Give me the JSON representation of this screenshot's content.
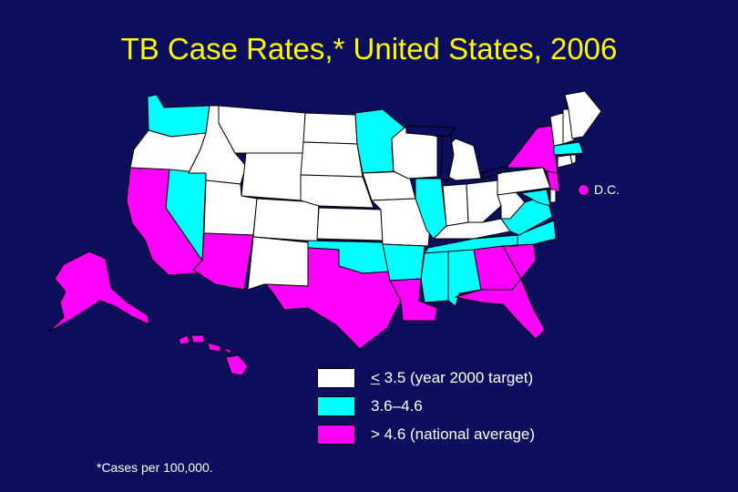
{
  "title": "TB Case Rates,* United States, 2006",
  "footnote": "*Cases per 100,000.",
  "colors": {
    "background": "#0c0d5c",
    "title": "#ffff00",
    "low": "#ffffff",
    "mid": "#00ffff",
    "high": "#ff00ff",
    "lakes": "#0c0d5c"
  },
  "legend": [
    {
      "category": "low",
      "lead": "<",
      "label": " 3.5 (year 2000 target)"
    },
    {
      "category": "mid",
      "lead": "",
      "label": "3.6–4.6"
    },
    {
      "category": "high",
      "lead": "",
      "label": "> 4.6 (national average)"
    }
  ],
  "dc": {
    "label": "D.C.",
    "category": "high"
  },
  "states": [
    {
      "name": "WA",
      "category": "mid"
    },
    {
      "name": "OR",
      "category": "low"
    },
    {
      "name": "CA",
      "category": "high"
    },
    {
      "name": "NV",
      "category": "mid"
    },
    {
      "name": "ID",
      "category": "low"
    },
    {
      "name": "MT",
      "category": "low"
    },
    {
      "name": "WY",
      "category": "low"
    },
    {
      "name": "UT",
      "category": "low"
    },
    {
      "name": "AZ",
      "category": "high"
    },
    {
      "name": "CO",
      "category": "low"
    },
    {
      "name": "NM",
      "category": "low"
    },
    {
      "name": "ND",
      "category": "low"
    },
    {
      "name": "SD",
      "category": "low"
    },
    {
      "name": "NE",
      "category": "low"
    },
    {
      "name": "KS",
      "category": "low"
    },
    {
      "name": "OK",
      "category": "mid"
    },
    {
      "name": "TX",
      "category": "high"
    },
    {
      "name": "MN",
      "category": "mid"
    },
    {
      "name": "IA",
      "category": "low"
    },
    {
      "name": "MO",
      "category": "low"
    },
    {
      "name": "AR",
      "category": "mid"
    },
    {
      "name": "LA",
      "category": "high"
    },
    {
      "name": "WI",
      "category": "low"
    },
    {
      "name": "IL",
      "category": "mid"
    },
    {
      "name": "MI",
      "category": "low"
    },
    {
      "name": "IN",
      "category": "low"
    },
    {
      "name": "OH",
      "category": "low"
    },
    {
      "name": "KY",
      "category": "low"
    },
    {
      "name": "TN",
      "category": "mid"
    },
    {
      "name": "MS",
      "category": "mid"
    },
    {
      "name": "AL",
      "category": "mid"
    },
    {
      "name": "GA",
      "category": "high"
    },
    {
      "name": "FL",
      "category": "high"
    },
    {
      "name": "SC",
      "category": "high"
    },
    {
      "name": "NC",
      "category": "mid"
    },
    {
      "name": "VA",
      "category": "mid"
    },
    {
      "name": "WV",
      "category": "low"
    },
    {
      "name": "PA",
      "category": "low"
    },
    {
      "name": "NY",
      "category": "high"
    },
    {
      "name": "NJ",
      "category": "high"
    },
    {
      "name": "MD",
      "category": "mid"
    },
    {
      "name": "DE",
      "category": "low"
    },
    {
      "name": "CT",
      "category": "low"
    },
    {
      "name": "RI",
      "category": "low"
    },
    {
      "name": "MA",
      "category": "mid"
    },
    {
      "name": "VT",
      "category": "low"
    },
    {
      "name": "NH",
      "category": "low"
    },
    {
      "name": "ME",
      "category": "low"
    },
    {
      "name": "AK",
      "category": "high"
    },
    {
      "name": "HI",
      "category": "high"
    }
  ]
}
